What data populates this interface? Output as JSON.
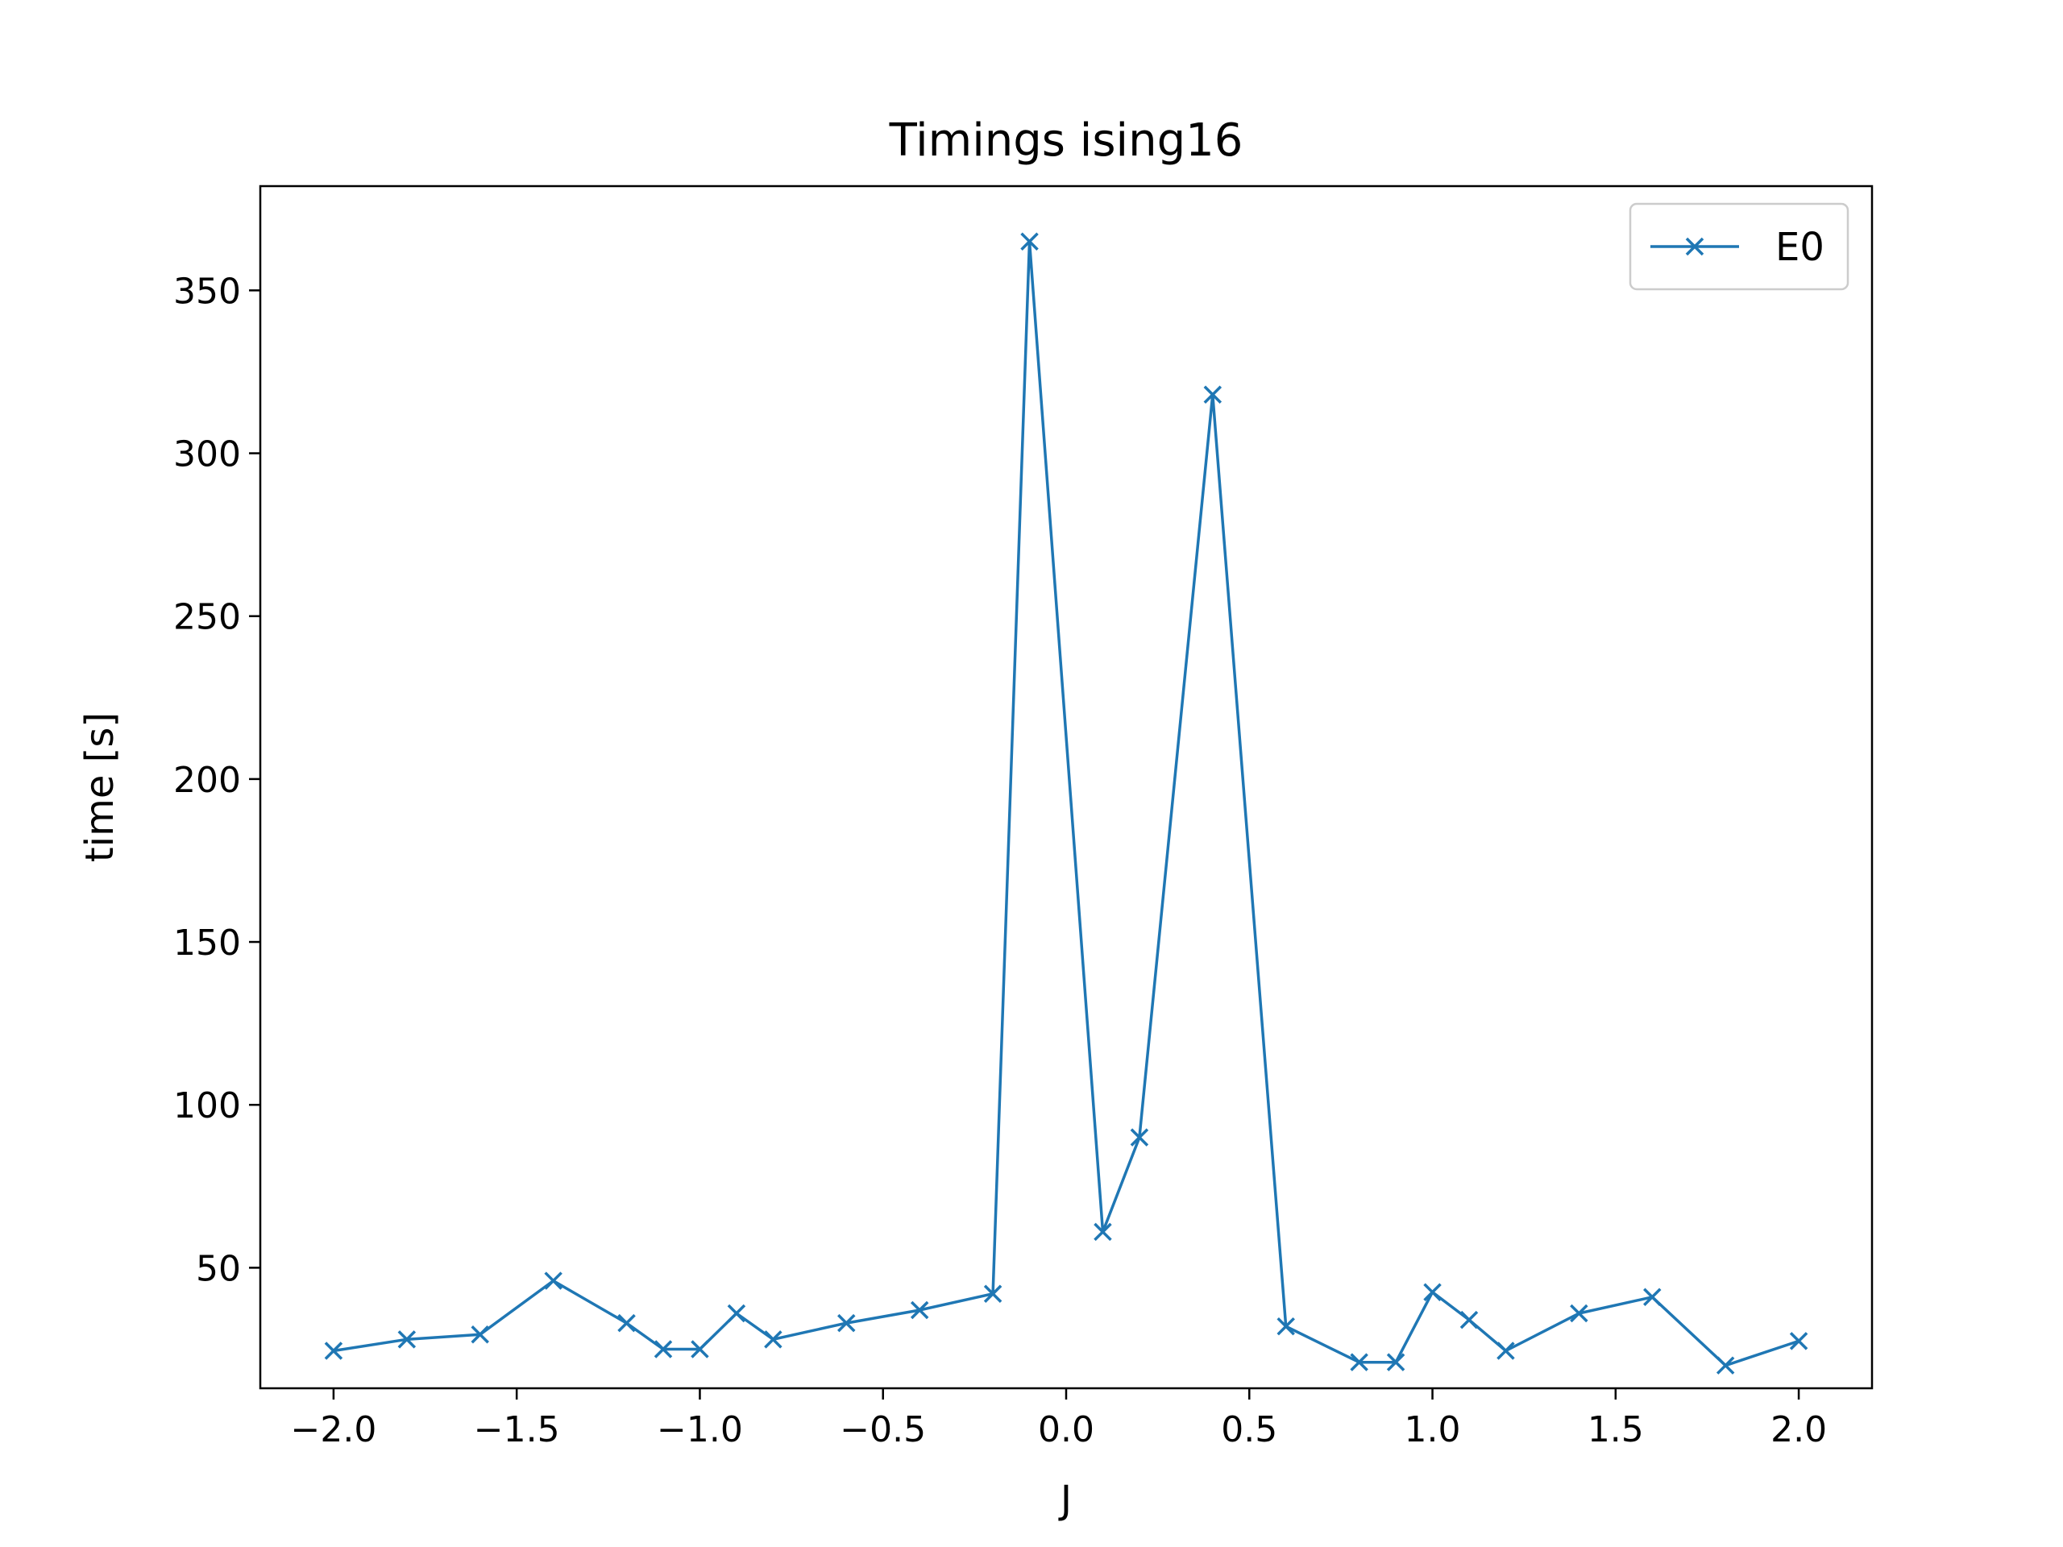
{
  "chart_data": {
    "type": "line",
    "title": "Timings ising16",
    "xlabel": "J",
    "ylabel": "time [s]",
    "xlim": [
      -2.2,
      2.2
    ],
    "ylim": [
      13,
      382
    ],
    "xticks": [
      -2.0,
      -1.5,
      -1.0,
      -0.5,
      0.0,
      0.5,
      1.0,
      1.5,
      2.0
    ],
    "xtick_labels": [
      "−2.0",
      "−1.5",
      "−1.0",
      "−0.5",
      "0.0",
      "0.5",
      "1.0",
      "1.5",
      "2.0"
    ],
    "yticks": [
      50,
      100,
      150,
      200,
      250,
      300,
      350
    ],
    "ytick_labels": [
      "50",
      "100",
      "150",
      "200",
      "250",
      "300",
      "350"
    ],
    "grid": false,
    "legend_position": "top-right",
    "series": [
      {
        "name": "E0",
        "color": "#1f77b4",
        "marker": "x",
        "x": [
          -2.0,
          -1.8,
          -1.6,
          -1.4,
          -1.2,
          -1.1,
          -1.0,
          -0.9,
          -0.8,
          -0.6,
          -0.4,
          -0.2,
          -0.1,
          0.1,
          0.2,
          0.4,
          0.6,
          0.8,
          0.9,
          1.0,
          1.1,
          1.2,
          1.4,
          1.6,
          1.8,
          2.0
        ],
        "y": [
          24.5,
          28,
          29.5,
          46,
          33,
          25,
          25,
          36,
          28,
          33,
          37,
          42,
          365,
          61,
          90,
          318,
          32,
          21,
          21,
          42.5,
          34,
          24.5,
          36,
          41,
          20,
          27.5
        ]
      }
    ]
  }
}
